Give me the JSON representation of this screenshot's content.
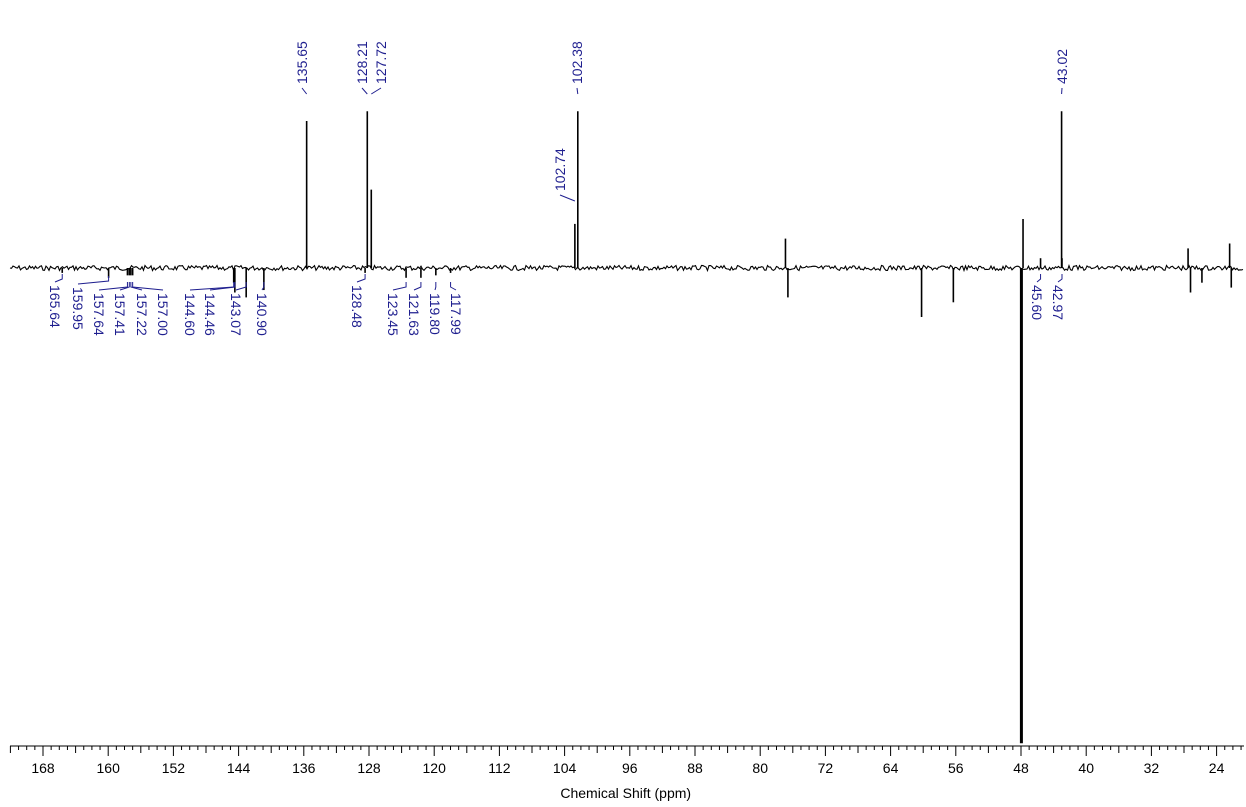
{
  "chart_data": {
    "type": "line",
    "title": "",
    "xlabel": "Chemical Shift (ppm)",
    "ylabel": "",
    "xlim": [
      172,
      21
    ],
    "x_reversed": true,
    "ylim": [
      -1.0,
      0.45
    ],
    "grid": false,
    "colors": {
      "trace": "#000000",
      "label": "#1f1f8f"
    },
    "x_ticks": [
      168,
      160,
      152,
      144,
      136,
      128,
      120,
      112,
      104,
      96,
      88,
      80,
      72,
      64,
      56,
      48,
      40,
      32,
      24
    ],
    "peak_labels": [
      "165.64",
      "159.95",
      "157.64",
      "157.41",
      "157.22",
      "157.00",
      "144.60",
      "144.46",
      "143.07",
      "140.90",
      "135.65",
      "128.48",
      "128.21",
      "127.72",
      "123.45",
      "121.63",
      "119.80",
      "117.99",
      "102.74",
      "102.38",
      "45.60",
      "43.02",
      "42.97"
    ],
    "peaks": [
      {
        "x": 165.64,
        "y": -0.01
      },
      {
        "x": 159.95,
        "y": -0.02
      },
      {
        "x": 157.64,
        "y": -0.015
      },
      {
        "x": 157.41,
        "y": -0.015
      },
      {
        "x": 157.22,
        "y": -0.015
      },
      {
        "x": 157.0,
        "y": -0.015
      },
      {
        "x": 144.6,
        "y": -0.03
      },
      {
        "x": 144.46,
        "y": -0.05
      },
      {
        "x": 143.07,
        "y": -0.06
      },
      {
        "x": 140.9,
        "y": -0.045
      },
      {
        "x": 135.65,
        "y": 0.3
      },
      {
        "x": 128.48,
        "y": -0.01
      },
      {
        "x": 128.21,
        "y": 0.32
      },
      {
        "x": 127.72,
        "y": 0.16
      },
      {
        "x": 123.45,
        "y": -0.02
      },
      {
        "x": 121.63,
        "y": -0.02
      },
      {
        "x": 119.8,
        "y": -0.015
      },
      {
        "x": 117.99,
        "y": -0.01
      },
      {
        "x": 102.74,
        "y": 0.09
      },
      {
        "x": 102.38,
        "y": 0.32
      },
      {
        "x": 76.9,
        "y": 0.06
      },
      {
        "x": 76.6,
        "y": -0.06
      },
      {
        "x": 60.2,
        "y": -0.1
      },
      {
        "x": 56.3,
        "y": -0.07
      },
      {
        "x": 47.95,
        "y": -0.97
      },
      {
        "x": 47.75,
        "y": 0.1
      },
      {
        "x": 45.6,
        "y": 0.02
      },
      {
        "x": 43.02,
        "y": 0.32
      },
      {
        "x": 42.97,
        "y": 0.02
      },
      {
        "x": 27.5,
        "y": 0.04
      },
      {
        "x": 27.2,
        "y": -0.05
      },
      {
        "x": 25.8,
        "y": -0.03
      },
      {
        "x": 22.4,
        "y": 0.05
      },
      {
        "x": 22.2,
        "y": -0.04
      }
    ]
  }
}
